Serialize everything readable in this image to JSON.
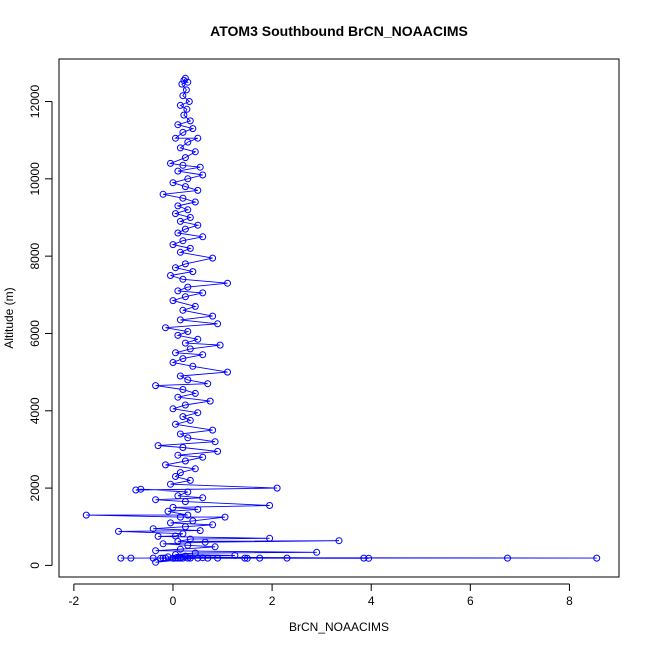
{
  "chart_data": {
    "type": "line",
    "title": "ATOM3 Southbound BrCN_NOAACIMS",
    "xlabel": "BrCN_NOAACIMS",
    "ylabel": "Altitude (m)",
    "xlim": [
      -2.3,
      9.0
    ],
    "ylim": [
      -300,
      13100
    ],
    "xticks": [
      -2,
      0,
      2,
      4,
      6,
      8
    ],
    "yticks": [
      0,
      2000,
      4000,
      6000,
      8000,
      10000,
      12000
    ],
    "grid": false,
    "line_color": "#0000ff",
    "marker": "open-circle",
    "series": [
      {
        "values": [
          [
            0.25,
            12600
          ],
          [
            0.22,
            12550
          ],
          [
            0.3,
            12500
          ],
          [
            0.18,
            12450
          ],
          [
            0.27,
            12300
          ],
          [
            0.2,
            12150
          ],
          [
            0.33,
            12000
          ],
          [
            0.15,
            11900
          ],
          [
            0.28,
            11800
          ],
          [
            0.22,
            11650
          ],
          [
            0.35,
            11500
          ],
          [
            0.1,
            11400
          ],
          [
            0.4,
            11300
          ],
          [
            0.2,
            11200
          ],
          [
            0.05,
            11050
          ],
          [
            0.5,
            11050
          ],
          [
            0.3,
            10950
          ],
          [
            0.15,
            10800
          ],
          [
            0.45,
            10700
          ],
          [
            0.25,
            10550
          ],
          [
            -0.05,
            10400
          ],
          [
            0.2,
            10350
          ],
          [
            0.55,
            10300
          ],
          [
            0.1,
            10200
          ],
          [
            0.6,
            10100
          ],
          [
            0.3,
            10000
          ],
          [
            0.0,
            9900
          ],
          [
            0.25,
            9800
          ],
          [
            0.5,
            9700
          ],
          [
            -0.2,
            9600
          ],
          [
            0.2,
            9500
          ],
          [
            0.45,
            9400
          ],
          [
            0.1,
            9300
          ],
          [
            0.3,
            9200
          ],
          [
            0.05,
            9100
          ],
          [
            0.35,
            9000
          ],
          [
            0.15,
            8900
          ],
          [
            0.5,
            8800
          ],
          [
            0.25,
            8700
          ],
          [
            0.1,
            8600
          ],
          [
            0.6,
            8500
          ],
          [
            0.2,
            8400
          ],
          [
            0.0,
            8300
          ],
          [
            0.35,
            8200
          ],
          [
            0.15,
            8100
          ],
          [
            0.8,
            7950
          ],
          [
            0.25,
            7800
          ],
          [
            0.05,
            7700
          ],
          [
            0.4,
            7600
          ],
          [
            -0.05,
            7500
          ],
          [
            0.2,
            7400
          ],
          [
            1.1,
            7300
          ],
          [
            0.3,
            7200
          ],
          [
            0.1,
            7100
          ],
          [
            0.6,
            7050
          ],
          [
            0.25,
            6950
          ],
          [
            0.0,
            6850
          ],
          [
            0.45,
            6700
          ],
          [
            0.2,
            6600
          ],
          [
            0.8,
            6450
          ],
          [
            0.15,
            6350
          ],
          [
            0.9,
            6250
          ],
          [
            -0.15,
            6150
          ],
          [
            0.3,
            6050
          ],
          [
            0.1,
            5950
          ],
          [
            0.5,
            5850
          ],
          [
            0.25,
            5750
          ],
          [
            0.95,
            5700
          ],
          [
            0.35,
            5600
          ],
          [
            0.05,
            5500
          ],
          [
            0.6,
            5450
          ],
          [
            0.2,
            5350
          ],
          [
            0.0,
            5250
          ],
          [
            0.4,
            5150
          ],
          [
            1.1,
            5000
          ],
          [
            0.15,
            4900
          ],
          [
            0.3,
            4800
          ],
          [
            0.7,
            4700
          ],
          [
            -0.35,
            4650
          ],
          [
            0.2,
            4550
          ],
          [
            0.45,
            4450
          ],
          [
            0.1,
            4350
          ],
          [
            0.75,
            4250
          ],
          [
            0.25,
            4150
          ],
          [
            0.0,
            4050
          ],
          [
            0.5,
            3950
          ],
          [
            0.2,
            3850
          ],
          [
            0.35,
            3750
          ],
          [
            0.05,
            3650
          ],
          [
            0.8,
            3500
          ],
          [
            0.15,
            3400
          ],
          [
            0.3,
            3300
          ],
          [
            0.85,
            3200
          ],
          [
            -0.3,
            3100
          ],
          [
            0.2,
            3050
          ],
          [
            0.9,
            2950
          ],
          [
            0.1,
            2850
          ],
          [
            0.6,
            2800
          ],
          [
            0.25,
            2700
          ],
          [
            -0.15,
            2600
          ],
          [
            0.45,
            2500
          ],
          [
            0.15,
            2400
          ],
          [
            0.05,
            2300
          ],
          [
            0.35,
            2200
          ],
          [
            -0.05,
            2100
          ],
          [
            2.1,
            2000
          ],
          [
            -0.75,
            1950
          ],
          [
            -0.65,
            1970
          ],
          [
            0.3,
            1900
          ],
          [
            0.1,
            1800
          ],
          [
            0.6,
            1750
          ],
          [
            -0.35,
            1700
          ],
          [
            0.25,
            1650
          ],
          [
            1.95,
            1550
          ],
          [
            0.0,
            1500
          ],
          [
            0.5,
            1450
          ],
          [
            -0.1,
            1400
          ],
          [
            0.3,
            1300
          ],
          [
            -1.75,
            1300
          ],
          [
            0.15,
            1250
          ],
          [
            1.05,
            1250
          ],
          [
            0.4,
            1150
          ],
          [
            -0.05,
            1100
          ],
          [
            0.8,
            1050
          ],
          [
            0.25,
            1000
          ],
          [
            -0.4,
            950
          ],
          [
            0.55,
            900
          ],
          [
            -1.1,
            880
          ],
          [
            0.2,
            820
          ],
          [
            0.05,
            760
          ],
          [
            -0.3,
            750
          ],
          [
            1.95,
            700
          ],
          [
            0.35,
            680
          ],
          [
            0.1,
            620
          ],
          [
            3.35,
            640
          ],
          [
            0.65,
            600
          ],
          [
            -0.2,
            560
          ],
          [
            0.3,
            520
          ],
          [
            0.85,
            480
          ],
          [
            0.15,
            420
          ],
          [
            -0.35,
            380
          ],
          [
            2.9,
            340
          ],
          [
            0.45,
            320
          ],
          [
            0.05,
            280
          ],
          [
            1.25,
            260
          ],
          [
            0.25,
            240
          ],
          [
            -0.1,
            220
          ],
          [
            3.85,
            190
          ],
          [
            0.6,
            200
          ],
          [
            8.55,
            190
          ],
          [
            0.2,
            190
          ],
          [
            -1.05,
            190
          ],
          [
            6.75,
            190
          ],
          [
            0.35,
            190
          ],
          [
            -0.85,
            190
          ],
          [
            3.95,
            185
          ],
          [
            0.1,
            190
          ],
          [
            2.3,
            190
          ],
          [
            1.45,
            190
          ],
          [
            0.0,
            185
          ],
          [
            1.75,
            190
          ],
          [
            -0.4,
            190
          ],
          [
            0.9,
            190
          ],
          [
            -0.2,
            190
          ],
          [
            0.5,
            190
          ],
          [
            -0.35,
            80
          ],
          [
            0.15,
            190
          ],
          [
            1.5,
            185
          ],
          [
            -0.15,
            190
          ],
          [
            0.7,
            190
          ],
          [
            0.3,
            190
          ],
          [
            -0.25,
            185
          ],
          [
            0.05,
            190
          ]
        ]
      }
    ]
  }
}
